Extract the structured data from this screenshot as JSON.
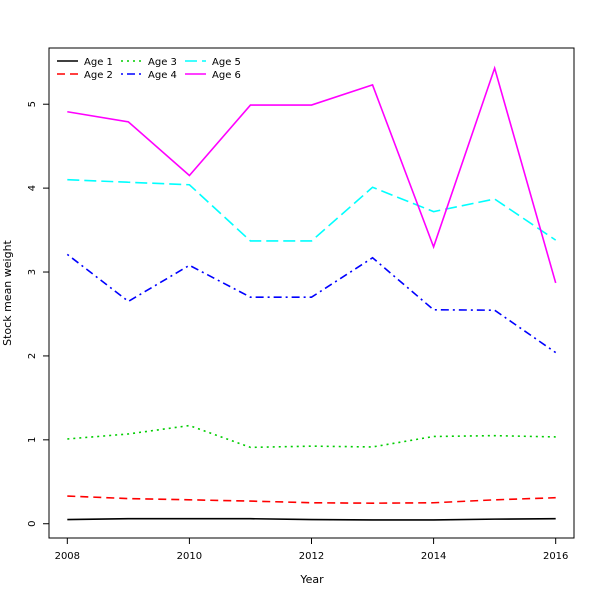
{
  "chart_data": {
    "type": "line",
    "title": "",
    "xlabel": "Year",
    "ylabel": "Stock mean weight",
    "xlim": [
      2007.7,
      2016.3
    ],
    "ylim": [
      -0.17,
      5.67
    ],
    "x_ticks": [
      2008,
      2010,
      2012,
      2014,
      2016
    ],
    "y_ticks": [
      0,
      1,
      2,
      3,
      4,
      5
    ],
    "grid": false,
    "legend_position": "top-left",
    "x": [
      2008,
      2009,
      2010,
      2011,
      2012,
      2013,
      2014,
      2015,
      2016
    ],
    "series": [
      {
        "name": "Age 1",
        "color": "#000000",
        "dash": "solid",
        "values": [
          0.05,
          0.06,
          0.06,
          0.06,
          0.05,
          0.045,
          0.045,
          0.055,
          0.06
        ]
      },
      {
        "name": "Age 2",
        "color": "#ff0000",
        "dash": "dashed",
        "values": [
          0.33,
          0.3,
          0.285,
          0.27,
          0.25,
          0.245,
          0.25,
          0.285,
          0.31
        ]
      },
      {
        "name": "Age 3",
        "color": "#00cd00",
        "dash": "dotted",
        "values": [
          1.01,
          1.07,
          1.17,
          0.91,
          0.925,
          0.915,
          1.04,
          1.05,
          1.035
        ]
      },
      {
        "name": "Age 4",
        "color": "#0000ff",
        "dash": "dotdash",
        "values": [
          3.21,
          2.65,
          3.08,
          2.7,
          2.7,
          3.17,
          2.55,
          2.545,
          2.04
        ]
      },
      {
        "name": "Age 5",
        "color": "#00ffff",
        "dash": "longdash",
        "values": [
          4.1,
          4.07,
          4.04,
          3.37,
          3.37,
          4.01,
          3.72,
          3.87,
          3.38
        ]
      },
      {
        "name": "Age 6",
        "color": "#ff00ff",
        "dash": "solid",
        "values": [
          4.91,
          4.79,
          4.15,
          4.99,
          4.99,
          5.23,
          3.3,
          5.43,
          2.87
        ]
      }
    ]
  }
}
